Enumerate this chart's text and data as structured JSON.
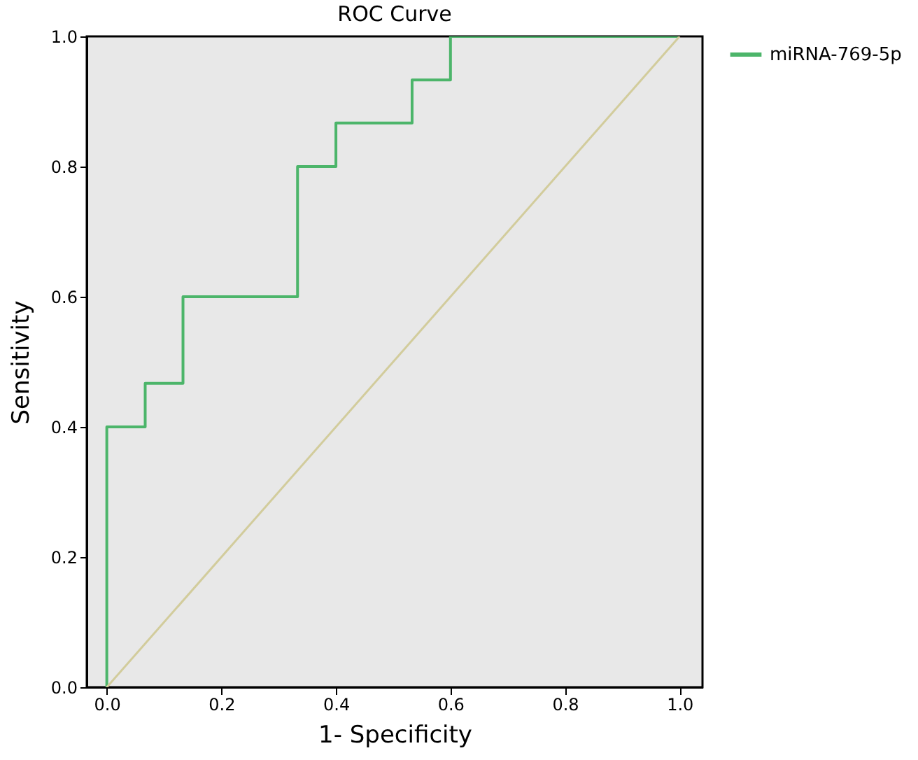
{
  "chart_data": {
    "type": "step",
    "title": "ROC Curve",
    "xlabel": "1- Specificity",
    "ylabel": "Sensitivity",
    "series": [
      {
        "name": "miRNA-769-5p",
        "color": "#4cb56a",
        "x": [
          0,
          0,
          0.067,
          0.133,
          0.333,
          0.4,
          0.533,
          0.6,
          1
        ],
        "values": [
          0,
          0.4,
          0.467,
          0.6,
          0.8,
          0.867,
          0.933,
          1,
          1
        ]
      },
      {
        "type": "line",
        "color": "#d2cc9c",
        "x": [
          0,
          1
        ],
        "values": [
          0,
          1
        ]
      }
    ],
    "xlim": [
      -0.035,
      1.04
    ],
    "ylim": [
      0,
      1
    ],
    "xticks": [
      {
        "value": 0,
        "label": "0.0"
      },
      {
        "value": 0.2,
        "label": "0.2"
      },
      {
        "value": 0.4,
        "label": "0.4"
      },
      {
        "value": 0.6,
        "label": "0.6"
      },
      {
        "value": 0.8,
        "label": "0.8"
      },
      {
        "value": 1,
        "label": "1.0"
      }
    ],
    "yticks": [
      {
        "value": 0,
        "label": "0.0"
      },
      {
        "value": 0.2,
        "label": "0.2"
      },
      {
        "value": 0.4,
        "label": "0.4"
      },
      {
        "value": 0.6,
        "label": "0.6"
      },
      {
        "value": 0.8,
        "label": "0.8"
      },
      {
        "value": 1,
        "label": "1.0"
      }
    ],
    "grid": false,
    "legend": "right"
  }
}
